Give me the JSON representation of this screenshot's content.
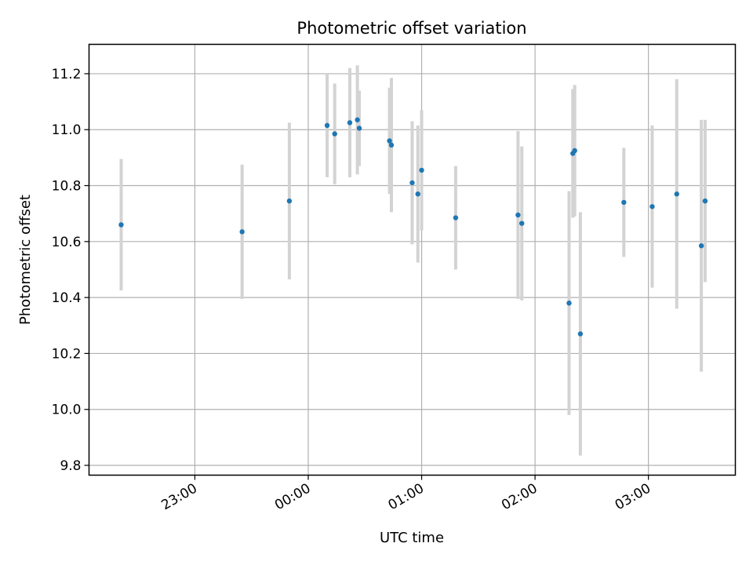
{
  "chart_data": {
    "type": "scatter",
    "title": "Photometric offset variation",
    "xlabel": "UTC time",
    "ylabel": "Photometric offset",
    "x_ticks": [
      "23:00",
      "00:00",
      "01:00",
      "02:00",
      "03:00"
    ],
    "y_ticks": [
      "9.8",
      "10.0",
      "10.2",
      "10.4",
      "10.6",
      "10.8",
      "11.0",
      "11.2"
    ],
    "xlim": [
      "22:04",
      "03:46"
    ],
    "ylim": [
      9.765,
      11.305
    ],
    "grid": true,
    "colors": {
      "point": "#1f77b4",
      "errorbar": "#d3d3d3",
      "grid": "#b0b0b0"
    },
    "points": [
      {
        "t": "22:21",
        "y": 10.66,
        "err": 0.235
      },
      {
        "t": "23:25",
        "y": 10.635,
        "err": 0.24
      },
      {
        "t": "23:50",
        "y": 10.745,
        "err": 0.28
      },
      {
        "t": "00:10",
        "y": 11.015,
        "err": 0.185
      },
      {
        "t": "00:14",
        "y": 10.985,
        "err": 0.18
      },
      {
        "t": "00:22",
        "y": 11.025,
        "err": 0.195
      },
      {
        "t": "00:26",
        "y": 11.035,
        "err": 0.195
      },
      {
        "t": "00:27",
        "y": 11.005,
        "err": 0.135
      },
      {
        "t": "00:43",
        "y": 10.96,
        "err": 0.19
      },
      {
        "t": "00:44",
        "y": 10.945,
        "err": 0.24
      },
      {
        "t": "00:55",
        "y": 10.81,
        "err": 0.22
      },
      {
        "t": "00:58",
        "y": 10.77,
        "err": 0.245
      },
      {
        "t": "01:00",
        "y": 10.855,
        "err": 0.215
      },
      {
        "t": "01:18",
        "y": 10.685,
        "err": 0.185
      },
      {
        "t": "01:51",
        "y": 10.695,
        "err": 0.3
      },
      {
        "t": "01:53",
        "y": 10.665,
        "err": 0.275
      },
      {
        "t": "02:18",
        "y": 10.38,
        "err": 0.4
      },
      {
        "t": "02:20",
        "y": 10.915,
        "err": 0.23
      },
      {
        "t": "02:21",
        "y": 10.925,
        "err": 0.235
      },
      {
        "t": "02:24",
        "y": 10.27,
        "err": 0.435
      },
      {
        "t": "02:47",
        "y": 10.74,
        "err": 0.195
      },
      {
        "t": "03:02",
        "y": 10.725,
        "err": 0.29
      },
      {
        "t": "03:15",
        "y": 10.77,
        "err": 0.41
      },
      {
        "t": "03:28",
        "y": 10.585,
        "err": 0.45
      },
      {
        "t": "03:30",
        "y": 10.745,
        "err": 0.29
      }
    ]
  }
}
